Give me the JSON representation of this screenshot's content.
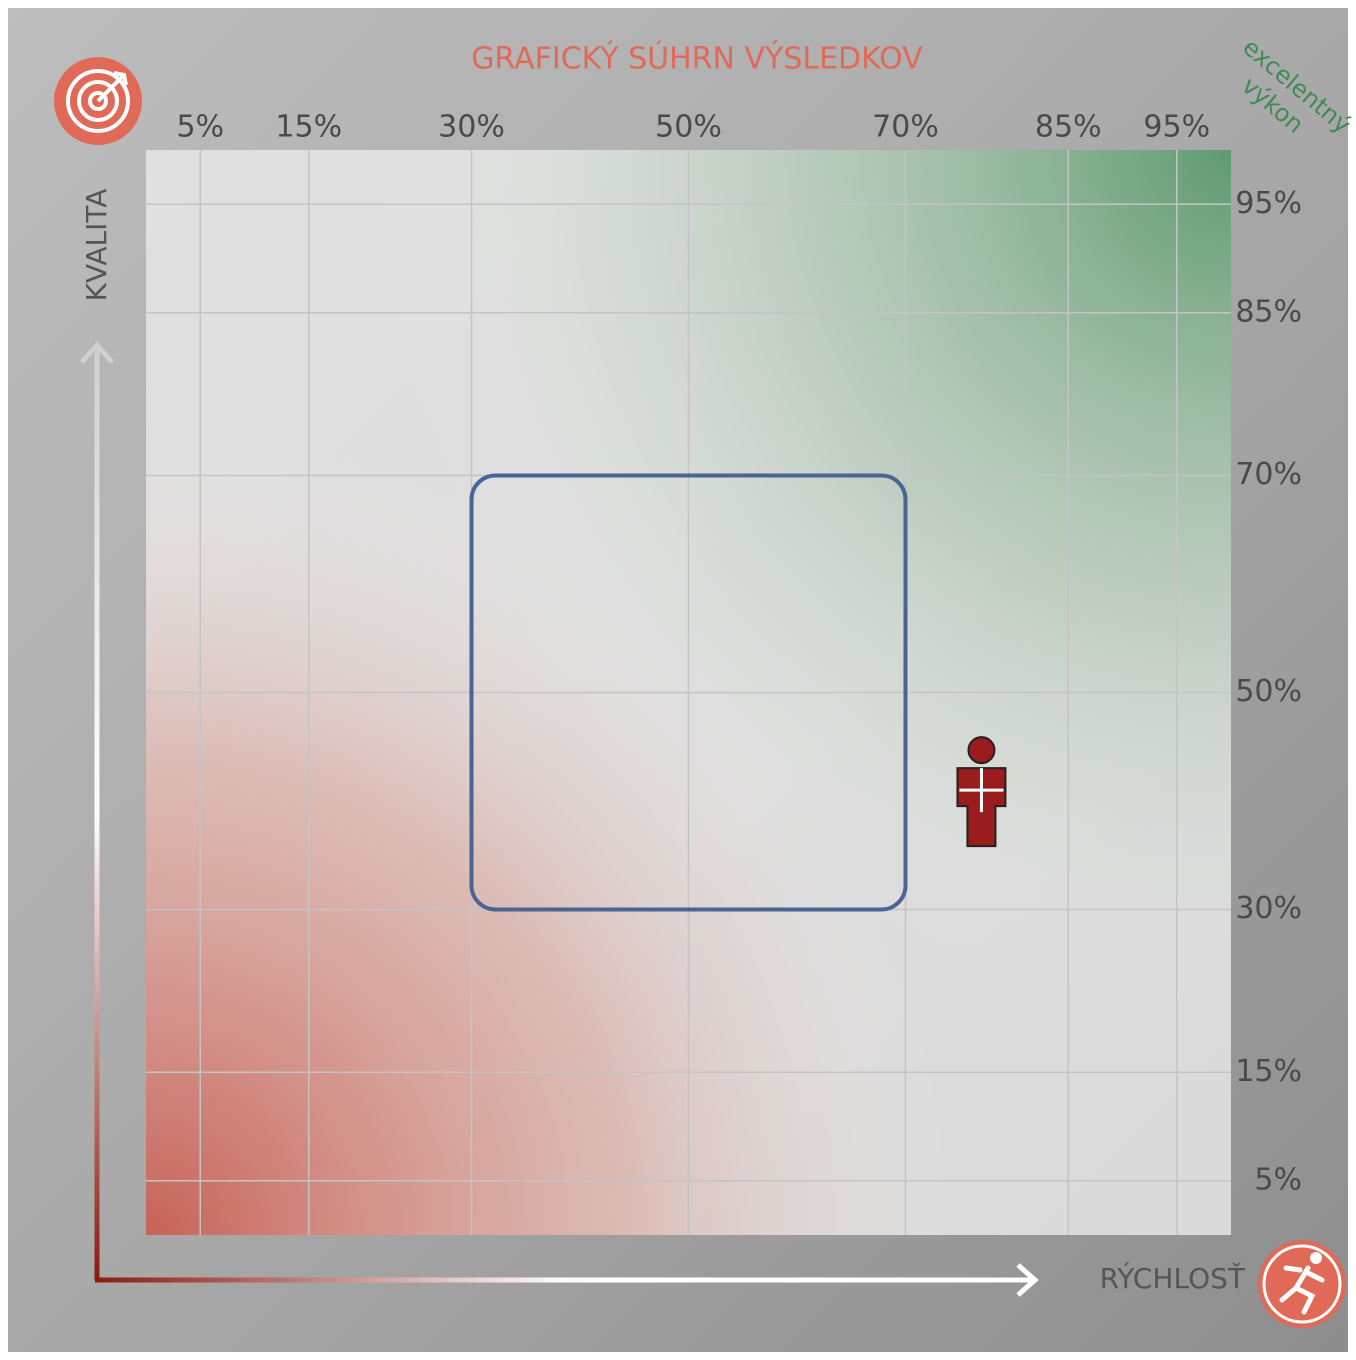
{
  "chart_data": {
    "type": "scatter",
    "title": "GRAFICKÝ SÚHRN VÝSLEDKOV",
    "annotation": [
      "excelentný",
      "výkon"
    ],
    "x_label": "RÝCHLOSŤ",
    "y_label": "KVALITA",
    "xlim": [
      0,
      100
    ],
    "ylim": [
      0,
      100
    ],
    "xticks": [
      {
        "value": 5,
        "label": "5%"
      },
      {
        "value": 15,
        "label": "15%"
      },
      {
        "value": 30,
        "label": "30%"
      },
      {
        "value": 50,
        "label": "50%"
      },
      {
        "value": 70,
        "label": "70%"
      },
      {
        "value": 85,
        "label": "85%"
      },
      {
        "value": 95,
        "label": "95%"
      }
    ],
    "yticks": [
      {
        "value": 5,
        "label": "5%"
      },
      {
        "value": 15,
        "label": "15%"
      },
      {
        "value": 30,
        "label": "30%"
      },
      {
        "value": 50,
        "label": "50%"
      },
      {
        "value": 70,
        "label": "70%"
      },
      {
        "value": 85,
        "label": "85%"
      },
      {
        "value": 95,
        "label": "95%"
      }
    ],
    "grid": true,
    "zone": {
      "xlim": [
        30,
        70
      ],
      "ylim": [
        30,
        70
      ],
      "color": "#4a6496"
    },
    "series": [
      {
        "color": "#9b1c1c",
        "x": [
          77
        ],
        "values": [
          41
        ]
      }
    ]
  }
}
